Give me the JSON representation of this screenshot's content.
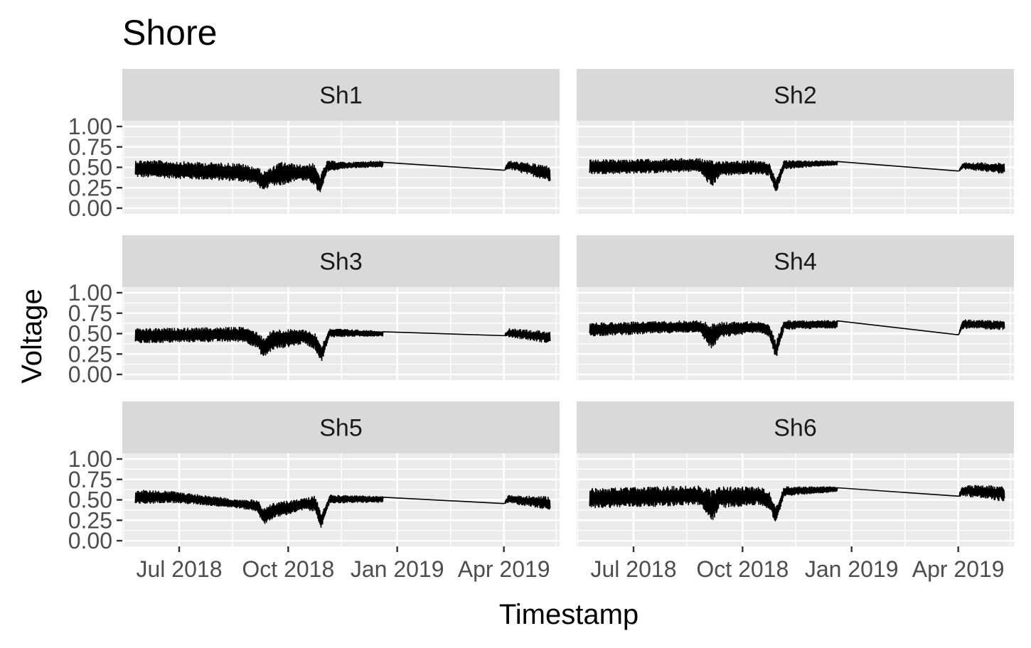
{
  "chart_data": {
    "type": "line",
    "title": "Shore",
    "xlabel": "Timestamp",
    "ylabel": "Voltage",
    "ylim": [
      0,
      1
    ],
    "xlim": [
      "2018-05-14",
      "2019-05-18"
    ],
    "y_ticks": [
      "0.00",
      "0.25",
      "0.50",
      "0.75",
      "1.00"
    ],
    "x_ticks": [
      {
        "date": "2018-07-01",
        "label": "Jul 2018"
      },
      {
        "date": "2018-10-01",
        "label": "Oct 2018"
      },
      {
        "date": "2019-01-01",
        "label": "Jan 2019"
      },
      {
        "date": "2019-04-01",
        "label": "Apr 2019"
      }
    ],
    "grid": true,
    "colors": {
      "panel_background": "#EBEBEB",
      "strip_background": "#D9D9D9",
      "grid": "#FFFFFF",
      "line": "#000000"
    },
    "facets": [
      {
        "name": "Sh1",
        "noisy_end": "2018-12-20",
        "resume": "2019-04-01",
        "end": "2019-05-10",
        "series": [
          {
            "date": "2018-05-25",
            "low": 0.38,
            "high": 0.59
          },
          {
            "date": "2018-06-20",
            "low": 0.37,
            "high": 0.58
          },
          {
            "date": "2018-07-20",
            "low": 0.35,
            "high": 0.56
          },
          {
            "date": "2018-08-20",
            "low": 0.33,
            "high": 0.55
          },
          {
            "date": "2018-09-05",
            "low": 0.3,
            "high": 0.5
          },
          {
            "date": "2018-09-10",
            "low": 0.18,
            "high": 0.45
          },
          {
            "date": "2018-09-15",
            "low": 0.28,
            "high": 0.48
          },
          {
            "date": "2018-09-25",
            "low": 0.28,
            "high": 0.57
          },
          {
            "date": "2018-10-10",
            "low": 0.35,
            "high": 0.53
          },
          {
            "date": "2018-10-22",
            "low": 0.3,
            "high": 0.55
          },
          {
            "date": "2018-10-28",
            "low": 0.16,
            "high": 0.4
          },
          {
            "date": "2018-11-03",
            "low": 0.45,
            "high": 0.58
          },
          {
            "date": "2018-11-20",
            "low": 0.49,
            "high": 0.56
          },
          {
            "date": "2018-12-20",
            "low": 0.5,
            "high": 0.58
          },
          {
            "date": "2019-04-01",
            "low": 0.46,
            "high": 0.47
          },
          {
            "date": "2019-04-05",
            "low": 0.48,
            "high": 0.58
          },
          {
            "date": "2019-05-10",
            "low": 0.33,
            "high": 0.52
          }
        ]
      },
      {
        "name": "Sh2",
        "noisy_end": "2018-12-20",
        "resume": "2019-04-01",
        "end": "2019-05-10",
        "series": [
          {
            "date": "2018-05-25",
            "low": 0.42,
            "high": 0.59
          },
          {
            "date": "2018-07-20",
            "low": 0.43,
            "high": 0.6
          },
          {
            "date": "2018-08-25",
            "low": 0.45,
            "high": 0.61
          },
          {
            "date": "2018-09-05",
            "low": 0.25,
            "high": 0.58
          },
          {
            "date": "2018-09-12",
            "low": 0.4,
            "high": 0.58
          },
          {
            "date": "2018-10-15",
            "low": 0.42,
            "high": 0.58
          },
          {
            "date": "2018-10-24",
            "low": 0.4,
            "high": 0.55
          },
          {
            "date": "2018-10-29",
            "low": 0.17,
            "high": 0.35
          },
          {
            "date": "2018-11-05",
            "low": 0.48,
            "high": 0.58
          },
          {
            "date": "2018-12-20",
            "low": 0.53,
            "high": 0.58
          },
          {
            "date": "2019-04-01",
            "low": 0.45,
            "high": 0.46
          },
          {
            "date": "2019-04-05",
            "low": 0.48,
            "high": 0.56
          },
          {
            "date": "2019-05-10",
            "low": 0.42,
            "high": 0.55
          }
        ]
      },
      {
        "name": "Sh3",
        "noisy_end": "2018-12-20",
        "resume": "2019-04-01",
        "end": "2019-05-10",
        "series": [
          {
            "date": "2018-05-25",
            "low": 0.38,
            "high": 0.56
          },
          {
            "date": "2018-07-20",
            "low": 0.4,
            "high": 0.57
          },
          {
            "date": "2018-08-25",
            "low": 0.4,
            "high": 0.58
          },
          {
            "date": "2018-09-05",
            "low": 0.32,
            "high": 0.52
          },
          {
            "date": "2018-09-10",
            "low": 0.2,
            "high": 0.45
          },
          {
            "date": "2018-09-18",
            "low": 0.3,
            "high": 0.55
          },
          {
            "date": "2018-10-15",
            "low": 0.38,
            "high": 0.55
          },
          {
            "date": "2018-10-24",
            "low": 0.3,
            "high": 0.5
          },
          {
            "date": "2018-10-29",
            "low": 0.15,
            "high": 0.35
          },
          {
            "date": "2018-11-05",
            "low": 0.46,
            "high": 0.56
          },
          {
            "date": "2018-12-20",
            "low": 0.47,
            "high": 0.53
          },
          {
            "date": "2019-04-01",
            "low": 0.47,
            "high": 0.48
          },
          {
            "date": "2019-04-05",
            "low": 0.46,
            "high": 0.56
          },
          {
            "date": "2019-05-10",
            "low": 0.38,
            "high": 0.53
          }
        ]
      },
      {
        "name": "Sh4",
        "noisy_end": "2018-12-20",
        "resume": "2019-04-01",
        "end": "2019-05-10",
        "series": [
          {
            "date": "2018-05-25",
            "low": 0.47,
            "high": 0.63
          },
          {
            "date": "2018-07-20",
            "low": 0.5,
            "high": 0.65
          },
          {
            "date": "2018-08-25",
            "low": 0.52,
            "high": 0.66
          },
          {
            "date": "2018-09-05",
            "low": 0.3,
            "high": 0.62
          },
          {
            "date": "2018-09-12",
            "low": 0.45,
            "high": 0.64
          },
          {
            "date": "2018-10-15",
            "low": 0.52,
            "high": 0.65
          },
          {
            "date": "2018-10-24",
            "low": 0.45,
            "high": 0.6
          },
          {
            "date": "2018-10-29",
            "low": 0.18,
            "high": 0.4
          },
          {
            "date": "2018-11-05",
            "low": 0.55,
            "high": 0.66
          },
          {
            "date": "2018-12-20",
            "low": 0.57,
            "high": 0.66
          },
          {
            "date": "2019-04-01",
            "low": 0.48,
            "high": 0.49
          },
          {
            "date": "2019-04-05",
            "low": 0.56,
            "high": 0.67
          },
          {
            "date": "2019-05-10",
            "low": 0.55,
            "high": 0.66
          }
        ]
      },
      {
        "name": "Sh5",
        "noisy_end": "2018-12-20",
        "resume": "2019-04-01",
        "end": "2019-05-10",
        "series": [
          {
            "date": "2018-05-25",
            "low": 0.44,
            "high": 0.62
          },
          {
            "date": "2018-06-20",
            "low": 0.47,
            "high": 0.61
          },
          {
            "date": "2018-07-20",
            "low": 0.44,
            "high": 0.56
          },
          {
            "date": "2018-08-20",
            "low": 0.4,
            "high": 0.5
          },
          {
            "date": "2018-09-05",
            "low": 0.36,
            "high": 0.5
          },
          {
            "date": "2018-09-10",
            "low": 0.2,
            "high": 0.4
          },
          {
            "date": "2018-09-18",
            "low": 0.27,
            "high": 0.46
          },
          {
            "date": "2018-10-15",
            "low": 0.38,
            "high": 0.52
          },
          {
            "date": "2018-10-24",
            "low": 0.35,
            "high": 0.55
          },
          {
            "date": "2018-10-29",
            "low": 0.15,
            "high": 0.32
          },
          {
            "date": "2018-11-05",
            "low": 0.46,
            "high": 0.56
          },
          {
            "date": "2018-12-20",
            "low": 0.47,
            "high": 0.54
          },
          {
            "date": "2019-04-01",
            "low": 0.45,
            "high": 0.46
          },
          {
            "date": "2019-04-05",
            "low": 0.46,
            "high": 0.56
          },
          {
            "date": "2019-05-10",
            "low": 0.38,
            "high": 0.54
          }
        ]
      },
      {
        "name": "Sh6",
        "noisy_end": "2018-12-20",
        "resume": "2019-04-01",
        "end": "2019-05-10",
        "series": [
          {
            "date": "2018-05-25",
            "low": 0.4,
            "high": 0.64
          },
          {
            "date": "2018-07-20",
            "low": 0.42,
            "high": 0.66
          },
          {
            "date": "2018-08-25",
            "low": 0.44,
            "high": 0.67
          },
          {
            "date": "2018-09-05",
            "low": 0.23,
            "high": 0.62
          },
          {
            "date": "2018-09-12",
            "low": 0.4,
            "high": 0.66
          },
          {
            "date": "2018-10-15",
            "low": 0.44,
            "high": 0.66
          },
          {
            "date": "2018-10-24",
            "low": 0.38,
            "high": 0.6
          },
          {
            "date": "2018-10-29",
            "low": 0.2,
            "high": 0.4
          },
          {
            "date": "2018-11-05",
            "low": 0.55,
            "high": 0.66
          },
          {
            "date": "2018-12-20",
            "low": 0.6,
            "high": 0.66
          },
          {
            "date": "2019-04-01",
            "low": 0.54,
            "high": 0.55
          },
          {
            "date": "2019-04-05",
            "low": 0.55,
            "high": 0.68
          },
          {
            "date": "2019-05-10",
            "low": 0.48,
            "high": 0.67
          }
        ]
      }
    ]
  }
}
